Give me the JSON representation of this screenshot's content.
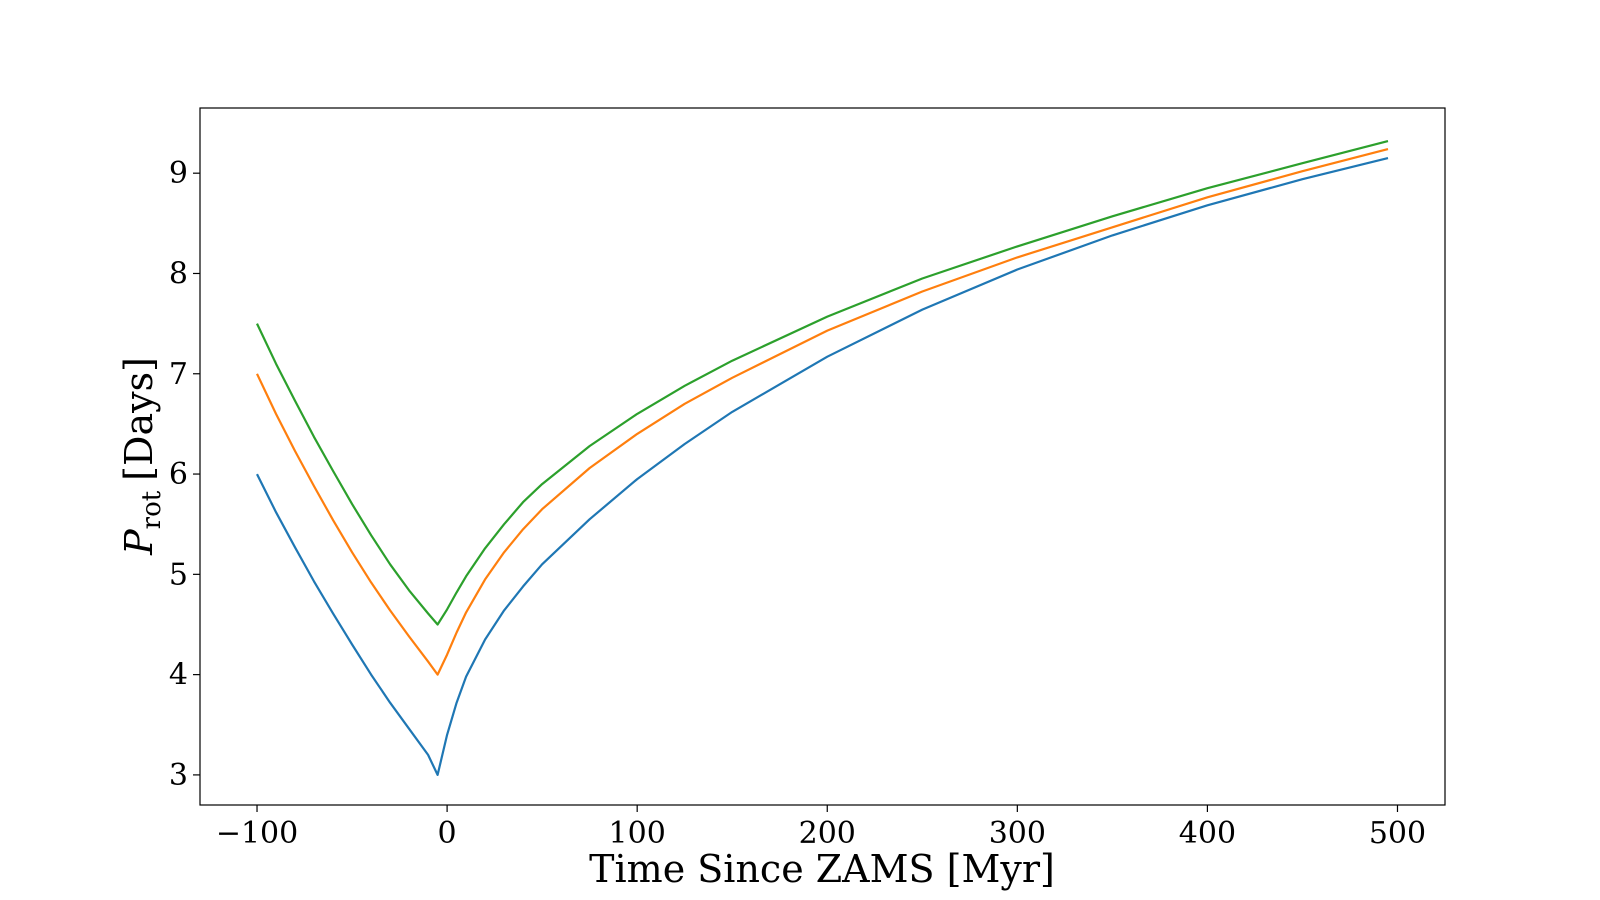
{
  "chart_data": {
    "type": "line",
    "title": "",
    "xlabel": "Time Since ZAMS [Myr]",
    "ylabel": {
      "symbol": "P",
      "subscript": "rot",
      "unit": "[Days]"
    },
    "xlim": [
      -130,
      525
    ],
    "ylim": [
      2.7,
      9.65
    ],
    "xticks": [
      -100,
      0,
      100,
      200,
      300,
      400,
      500
    ],
    "xtick_labels": [
      "−100",
      "0",
      "100",
      "200",
      "300",
      "400",
      "500"
    ],
    "yticks": [
      3,
      4,
      5,
      6,
      7,
      8,
      9
    ],
    "ytick_labels": [
      "3",
      "4",
      "5",
      "6",
      "7",
      "8",
      "9"
    ],
    "grid": false,
    "legend": "none",
    "series": [
      {
        "color": "#1f77b4",
        "x": [
          -100,
          -90,
          -80,
          -70,
          -60,
          -50,
          -40,
          -30,
          -20,
          -10,
          -5,
          0,
          5,
          10,
          20,
          30,
          40,
          50,
          75,
          100,
          125,
          150,
          200,
          250,
          300,
          350,
          400,
          450,
          495
        ],
        "y": [
          6.0,
          5.62,
          5.27,
          4.93,
          4.61,
          4.3,
          4.0,
          3.72,
          3.46,
          3.2,
          3.0,
          3.4,
          3.72,
          3.98,
          4.35,
          4.64,
          4.88,
          5.1,
          5.55,
          5.95,
          6.3,
          6.62,
          7.17,
          7.64,
          8.04,
          8.38,
          8.68,
          8.94,
          9.15
        ]
      },
      {
        "color": "#ff7f0e",
        "x": [
          -100,
          -90,
          -80,
          -70,
          -60,
          -50,
          -40,
          -30,
          -20,
          -10,
          -5,
          0,
          5,
          10,
          20,
          30,
          40,
          50,
          75,
          100,
          125,
          150,
          200,
          250,
          300,
          350,
          400,
          450,
          495
        ],
        "y": [
          7.0,
          6.6,
          6.23,
          5.88,
          5.54,
          5.22,
          4.92,
          4.64,
          4.38,
          4.13,
          4.0,
          4.2,
          4.42,
          4.62,
          4.95,
          5.22,
          5.45,
          5.65,
          6.06,
          6.4,
          6.7,
          6.96,
          7.43,
          7.82,
          8.16,
          8.46,
          8.76,
          9.02,
          9.24
        ]
      },
      {
        "color": "#2ca02c",
        "x": [
          -100,
          -90,
          -80,
          -70,
          -60,
          -50,
          -40,
          -30,
          -20,
          -10,
          -5,
          0,
          5,
          10,
          20,
          30,
          40,
          50,
          75,
          100,
          125,
          150,
          200,
          250,
          300,
          350,
          400,
          450,
          495
        ],
        "y": [
          7.5,
          7.1,
          6.73,
          6.37,
          6.03,
          5.7,
          5.39,
          5.1,
          4.84,
          4.61,
          4.5,
          4.65,
          4.82,
          4.98,
          5.26,
          5.5,
          5.72,
          5.9,
          6.28,
          6.6,
          6.88,
          7.13,
          7.57,
          7.95,
          8.27,
          8.57,
          8.85,
          9.1,
          9.32
        ]
      }
    ]
  }
}
